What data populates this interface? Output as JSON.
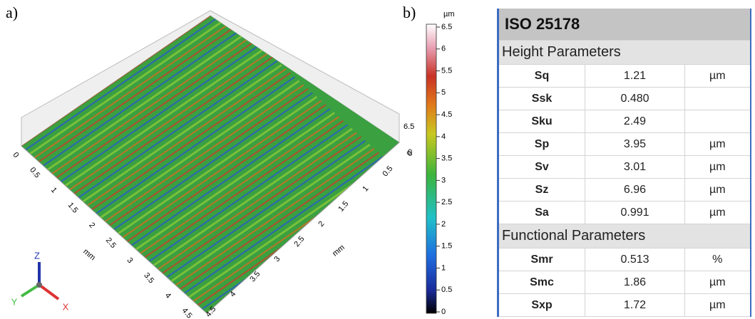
{
  "panels": {
    "a": "a)",
    "b": "b)"
  },
  "surface": {
    "x_axis": {
      "label": "mm",
      "ticks": [
        "0",
        "0.5",
        "1",
        "1.5",
        "2",
        "2.5",
        "3",
        "3.5",
        "4",
        "4.5"
      ]
    },
    "y_axis": {
      "label": "mm",
      "ticks": [
        "0",
        "0.5",
        "1",
        "1.5",
        "2",
        "2.5",
        "3",
        "3.5",
        "4",
        "4.5"
      ]
    },
    "z_axis": {
      "ticks": [
        "6.5",
        "0"
      ]
    },
    "triad": {
      "z": "Z",
      "y": "Y",
      "x": "X"
    }
  },
  "colorbar": {
    "unit": "µm",
    "lim": [
      0,
      6.5
    ],
    "ticks": [
      0,
      0.5,
      1,
      1.5,
      2,
      2.5,
      3,
      3.5,
      4,
      4.5,
      5,
      5.5,
      6,
      6.5
    ]
  },
  "table": {
    "title": "ISO 25178",
    "sections": [
      {
        "title": "Height Parameters",
        "rows": [
          [
            "Sq",
            "1.21",
            "µm"
          ],
          [
            "Ssk",
            "0.480"
          ],
          [
            "Sku",
            "2.49"
          ],
          [
            "Sp",
            "3.95",
            "µm"
          ],
          [
            "Sv",
            "3.01",
            "µm"
          ],
          [
            "Sz",
            "6.96",
            "µm"
          ],
          [
            "Sa",
            "0.991",
            "µm"
          ]
        ]
      },
      {
        "title": "Functional Parameters",
        "rows": [
          [
            "Smr",
            "0.513",
            "%"
          ],
          [
            "Smc",
            "1.86",
            "µm"
          ],
          [
            "Sxp",
            "1.72",
            "µm"
          ]
        ]
      }
    ]
  }
}
